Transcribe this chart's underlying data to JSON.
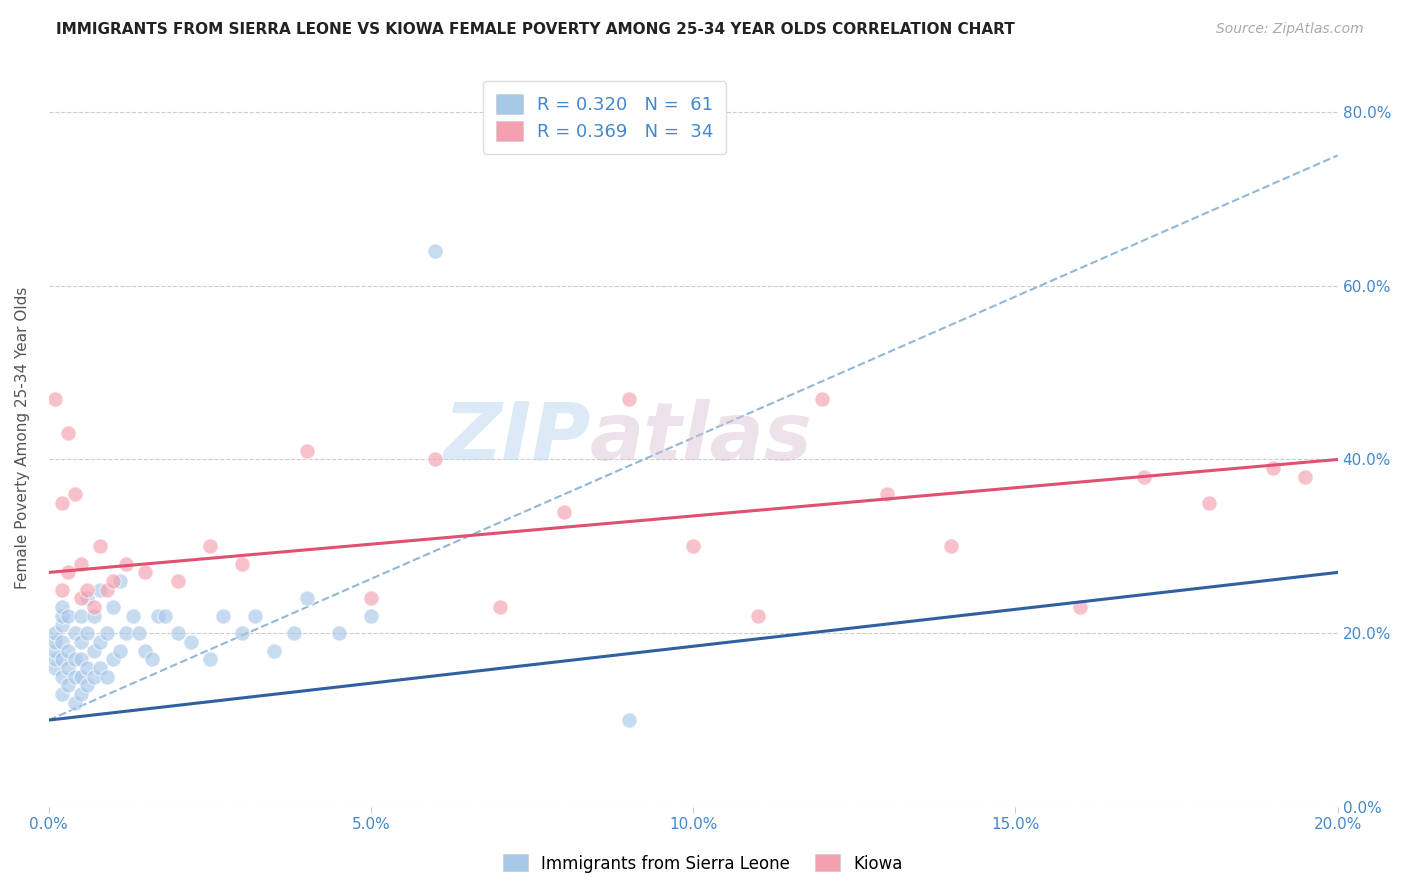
{
  "title": "IMMIGRANTS FROM SIERRA LEONE VS KIOWA FEMALE POVERTY AMONG 25-34 YEAR OLDS CORRELATION CHART",
  "source": "Source: ZipAtlas.com",
  "ylabel": "Female Poverty Among 25-34 Year Olds",
  "xlim": [
    0.0,
    0.2
  ],
  "ylim": [
    0.0,
    0.85
  ],
  "xticks": [
    0.0,
    0.05,
    0.1,
    0.15,
    0.2
  ],
  "yticks": [
    0.0,
    0.2,
    0.4,
    0.6,
    0.8
  ],
  "blue_color": "#a8c8e8",
  "blue_line_color": "#3060a0",
  "pink_color": "#f4a0b0",
  "pink_line_color": "#e05070",
  "dashed_line_color": "#90b8d8",
  "watermark_zip": "ZIP",
  "watermark_atlas": "atlas",
  "legend_r_blue": "R = 0.320",
  "legend_n_blue": "N =  61",
  "legend_r_pink": "R = 0.369",
  "legend_n_pink": "N =  34",
  "blue_scatter_x": [
    0.001,
    0.001,
    0.001,
    0.001,
    0.001,
    0.002,
    0.002,
    0.002,
    0.002,
    0.002,
    0.002,
    0.002,
    0.003,
    0.003,
    0.003,
    0.003,
    0.004,
    0.004,
    0.004,
    0.004,
    0.005,
    0.005,
    0.005,
    0.005,
    0.005,
    0.006,
    0.006,
    0.006,
    0.006,
    0.007,
    0.007,
    0.007,
    0.008,
    0.008,
    0.008,
    0.009,
    0.009,
    0.01,
    0.01,
    0.011,
    0.011,
    0.012,
    0.013,
    0.014,
    0.015,
    0.016,
    0.017,
    0.018,
    0.02,
    0.022,
    0.025,
    0.027,
    0.03,
    0.032,
    0.035,
    0.038,
    0.04,
    0.045,
    0.05,
    0.06,
    0.09
  ],
  "blue_scatter_y": [
    0.16,
    0.17,
    0.18,
    0.19,
    0.2,
    0.13,
    0.15,
    0.17,
    0.19,
    0.21,
    0.22,
    0.23,
    0.14,
    0.16,
    0.18,
    0.22,
    0.12,
    0.15,
    0.17,
    0.2,
    0.13,
    0.15,
    0.17,
    0.19,
    0.22,
    0.14,
    0.16,
    0.2,
    0.24,
    0.15,
    0.18,
    0.22,
    0.16,
    0.19,
    0.25,
    0.15,
    0.2,
    0.17,
    0.23,
    0.18,
    0.26,
    0.2,
    0.22,
    0.2,
    0.18,
    0.17,
    0.22,
    0.22,
    0.2,
    0.19,
    0.17,
    0.22,
    0.2,
    0.22,
    0.18,
    0.2,
    0.24,
    0.2,
    0.22,
    0.64,
    0.1
  ],
  "pink_scatter_x": [
    0.001,
    0.002,
    0.002,
    0.003,
    0.003,
    0.004,
    0.005,
    0.005,
    0.006,
    0.007,
    0.008,
    0.009,
    0.01,
    0.012,
    0.015,
    0.02,
    0.025,
    0.03,
    0.04,
    0.05,
    0.06,
    0.07,
    0.08,
    0.09,
    0.1,
    0.11,
    0.12,
    0.13,
    0.14,
    0.16,
    0.17,
    0.18,
    0.19,
    0.195
  ],
  "pink_scatter_y": [
    0.47,
    0.25,
    0.35,
    0.27,
    0.43,
    0.36,
    0.24,
    0.28,
    0.25,
    0.23,
    0.3,
    0.25,
    0.26,
    0.28,
    0.27,
    0.26,
    0.3,
    0.28,
    0.41,
    0.24,
    0.4,
    0.23,
    0.34,
    0.47,
    0.3,
    0.22,
    0.47,
    0.36,
    0.3,
    0.23,
    0.38,
    0.35,
    0.39,
    0.38
  ],
  "blue_trend": [
    0.0,
    0.2,
    0.1,
    0.27
  ],
  "pink_trend": [
    0.0,
    0.2,
    0.27,
    0.4
  ],
  "dashed_trend": [
    0.0,
    0.2,
    0.1,
    0.75
  ]
}
